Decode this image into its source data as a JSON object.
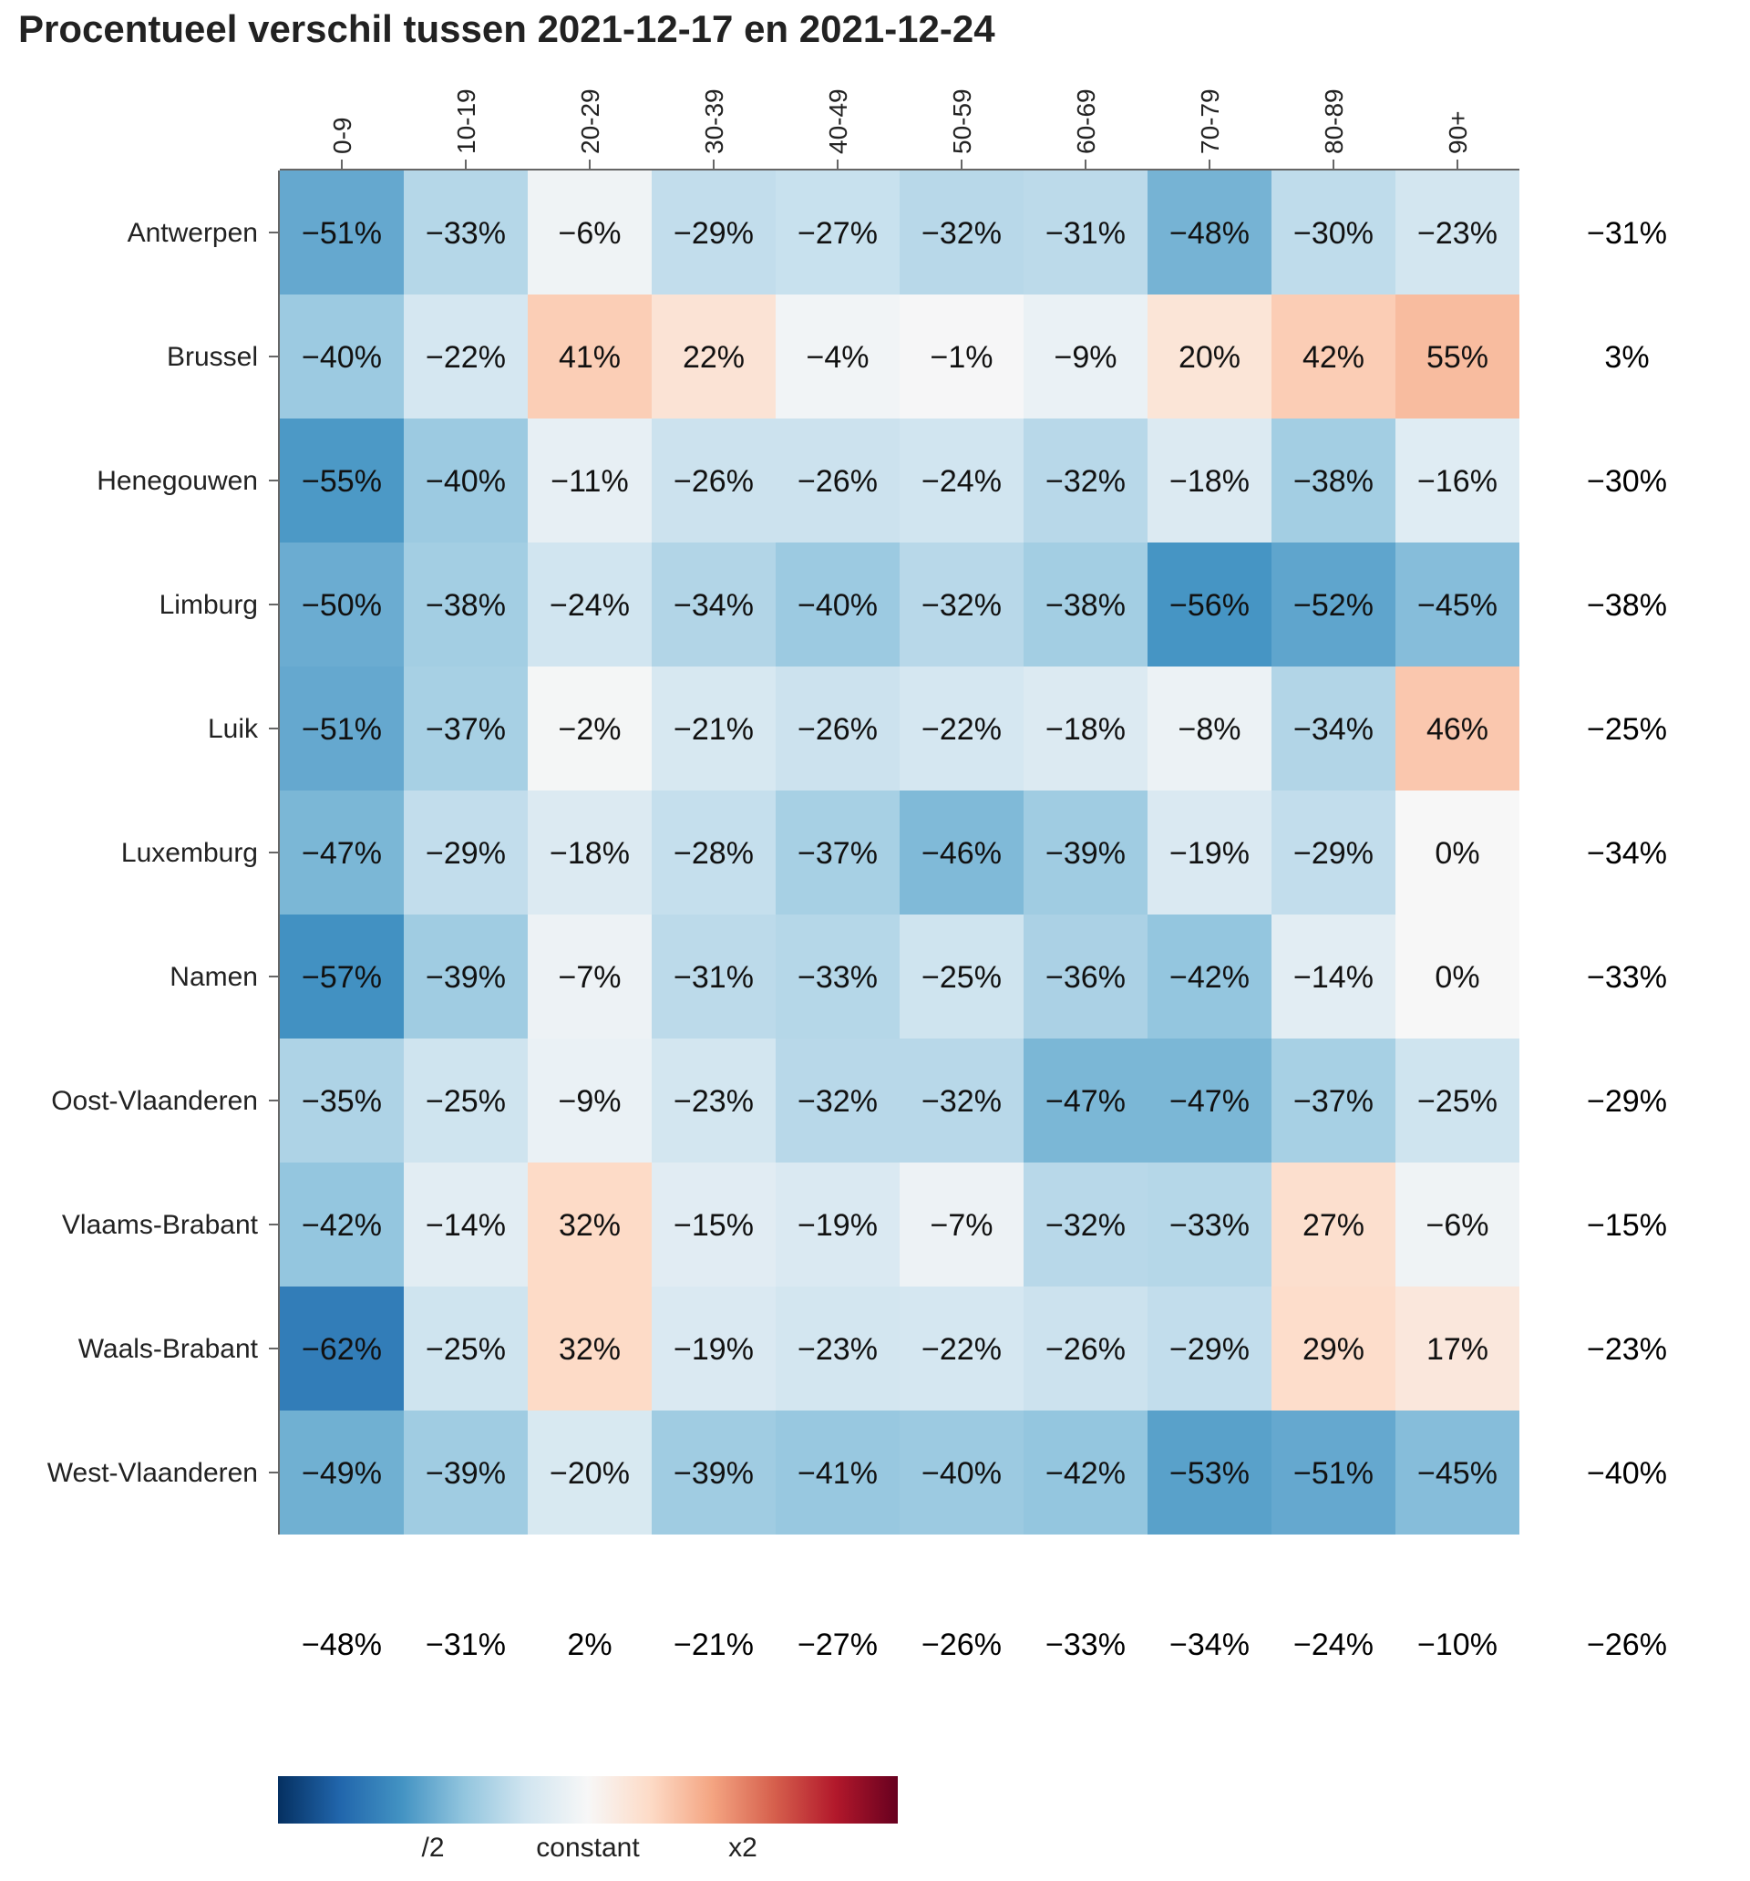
{
  "chart_data": {
    "type": "heatmap",
    "title": "Procentueel verschil tussen 2021-12-17 en 2021-12-24",
    "columns": [
      "0-9",
      "10-19",
      "20-29",
      "30-39",
      "40-49",
      "50-59",
      "60-69",
      "70-79",
      "80-89",
      "90+"
    ],
    "rows": [
      "Antwerpen",
      "Brussel",
      "Henegouwen",
      "Limburg",
      "Luik",
      "Luxemburg",
      "Namen",
      "Oost-Vlaanderen",
      "Vlaams-Brabant",
      "Waals-Brabant",
      "West-Vlaanderen"
    ],
    "values": [
      [
        -51,
        -33,
        -6,
        -29,
        -27,
        -32,
        -31,
        -48,
        -30,
        -23
      ],
      [
        -40,
        -22,
        41,
        22,
        -4,
        -1,
        -9,
        20,
        42,
        55
      ],
      [
        -55,
        -40,
        -11,
        -26,
        -26,
        -24,
        -32,
        -18,
        -38,
        -16
      ],
      [
        -50,
        -38,
        -24,
        -34,
        -40,
        -32,
        -38,
        -56,
        -52,
        -45
      ],
      [
        -51,
        -37,
        -2,
        -21,
        -26,
        -22,
        -18,
        -8,
        -34,
        46
      ],
      [
        -47,
        -29,
        -18,
        -28,
        -37,
        -46,
        -39,
        -19,
        -29,
        0
      ],
      [
        -57,
        -39,
        -7,
        -31,
        -33,
        -25,
        -36,
        -42,
        -14,
        0
      ],
      [
        -35,
        -25,
        -9,
        -23,
        -32,
        -32,
        -47,
        -47,
        -37,
        -25
      ],
      [
        -42,
        -14,
        32,
        -15,
        -19,
        -7,
        -32,
        -33,
        27,
        -6
      ],
      [
        -62,
        -25,
        32,
        -19,
        -23,
        -22,
        -26,
        -29,
        29,
        17
      ],
      [
        -49,
        -39,
        -20,
        -39,
        -41,
        -40,
        -42,
        -53,
        -51,
        -45
      ]
    ],
    "row_totals": [
      -31,
      3,
      -30,
      -38,
      -25,
      -34,
      -33,
      -29,
      -15,
      -23,
      -40
    ],
    "column_totals": [
      -48,
      -31,
      2,
      -21,
      -27,
      -26,
      -33,
      -34,
      -24,
      -10
    ],
    "grand_total": -26,
    "unit": "%",
    "colorscale": {
      "type": "diverging",
      "scale": "log2 ratio",
      "min_ratio": 0.25,
      "max_ratio": 4,
      "colors": [
        "#053061",
        "#2166ac",
        "#4393c3",
        "#92c5de",
        "#d1e5f0",
        "#f7f7f7",
        "#fddbc7",
        "#f4a582",
        "#d6604d",
        "#b2182b",
        "#67001f"
      ],
      "tick_labels": [
        "/2",
        "constant",
        "x2"
      ]
    }
  }
}
